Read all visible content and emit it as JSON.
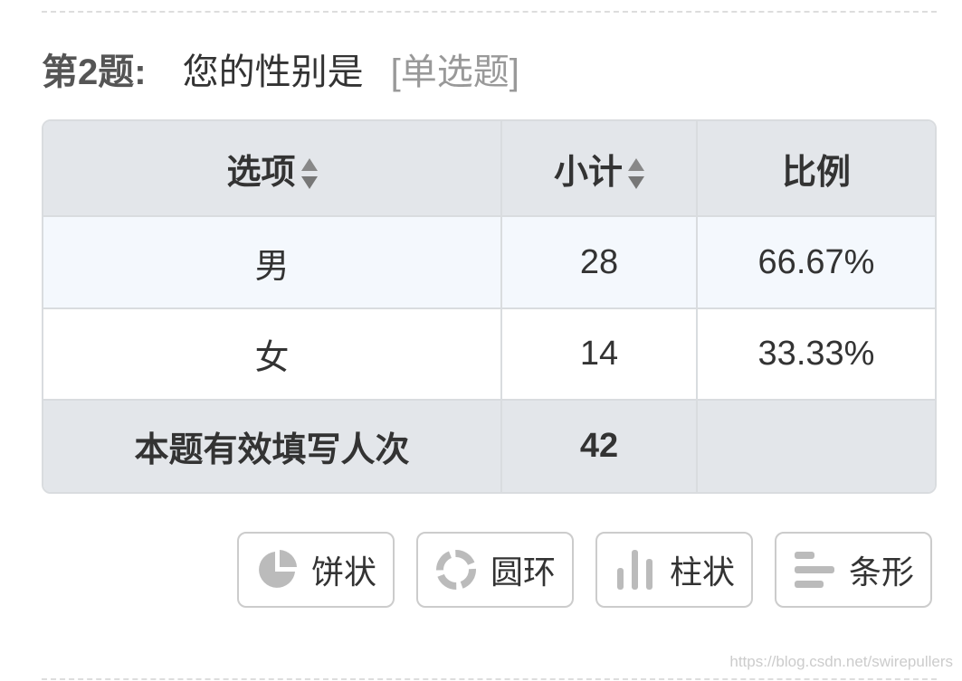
{
  "question": {
    "number_label": "第2题:",
    "text": "您的性别是",
    "type": "[单选题]"
  },
  "table": {
    "headers": [
      "选项",
      "小计",
      "比例"
    ],
    "rows": [
      {
        "option": "男",
        "count": "28",
        "percent": "66.67%"
      },
      {
        "option": "女",
        "count": "14",
        "percent": "33.33%"
      }
    ],
    "total": {
      "label": "本题有效填写人次",
      "count": "42"
    }
  },
  "chart_buttons": [
    {
      "label": "饼状",
      "icon": "pie-chart-icon"
    },
    {
      "label": "圆环",
      "icon": "donut-chart-icon"
    },
    {
      "label": "柱状",
      "icon": "bar-chart-icon"
    },
    {
      "label": "条形",
      "icon": "horizontal-bar-chart-icon"
    }
  ],
  "watermark": "https://blog.csdn.net/swirepullers",
  "colors": {
    "icon": "#bbbbbb",
    "header_bg": "#e3e6ea",
    "row_highlight": "#f4f8fd"
  }
}
